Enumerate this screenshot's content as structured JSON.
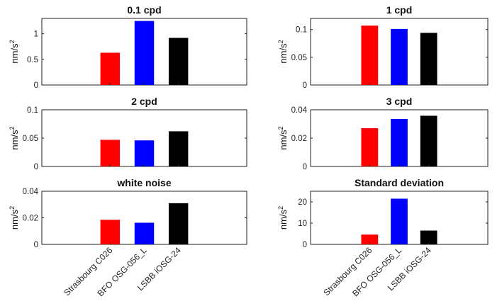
{
  "chart_data": [
    {
      "type": "bar",
      "title": "0.1 cpd",
      "ylabel": "nm/s",
      "ylabel_sup": "2",
      "categories": [
        "Strasbourg C026",
        "BFO OSG-056_L",
        "LSBB iOSG-24"
      ],
      "values": [
        0.63,
        1.25,
        0.92
      ],
      "ylim": [
        0,
        1.3
      ],
      "yticks": [
        0,
        0.5,
        1
      ],
      "ytick_labels": [
        "0",
        "0.5",
        "1"
      ],
      "colors": [
        "#ff0000",
        "#0000ff",
        "#000000"
      ]
    },
    {
      "type": "bar",
      "title": "1 cpd",
      "ylabel": "nm/s",
      "ylabel_sup": "2",
      "categories": [
        "Strasbourg C026",
        "BFO OSG-056_L",
        "LSBB iOSG-24"
      ],
      "values": [
        0.107,
        0.101,
        0.094
      ],
      "ylim": [
        0,
        0.12
      ],
      "yticks": [
        0,
        0.05,
        0.1
      ],
      "ytick_labels": [
        "0",
        "0.05",
        "0.1"
      ],
      "colors": [
        "#ff0000",
        "#0000ff",
        "#000000"
      ]
    },
    {
      "type": "bar",
      "title": "2 cpd",
      "ylabel": "nm/s",
      "ylabel_sup": "2",
      "categories": [
        "Strasbourg C026",
        "BFO OSG-056_L",
        "LSBB iOSG-24"
      ],
      "values": [
        0.047,
        0.046,
        0.062
      ],
      "ylim": [
        0,
        0.1
      ],
      "yticks": [
        0,
        0.05,
        0.1
      ],
      "ytick_labels": [
        "0",
        "0.05",
        "0.1"
      ],
      "colors": [
        "#ff0000",
        "#0000ff",
        "#000000"
      ]
    },
    {
      "type": "bar",
      "title": "3 cpd",
      "ylabel": "nm/s",
      "ylabel_sup": "2",
      "categories": [
        "Strasbourg C026",
        "BFO OSG-056_L",
        "LSBB iOSG-24"
      ],
      "values": [
        0.027,
        0.0335,
        0.0358
      ],
      "ylim": [
        0,
        0.04
      ],
      "yticks": [
        0,
        0.02,
        0.04
      ],
      "ytick_labels": [
        "0",
        "0.02",
        "0.04"
      ],
      "colors": [
        "#ff0000",
        "#0000ff",
        "#000000"
      ]
    },
    {
      "type": "bar",
      "title": "white noise",
      "ylabel": "nm/s",
      "ylabel_sup": "2",
      "categories": [
        "Strasbourg C026",
        "BFO OSG-056_L",
        "LSBB iOSG-24"
      ],
      "values": [
        0.0185,
        0.0163,
        0.031
      ],
      "ylim": [
        0,
        0.04
      ],
      "yticks": [
        0,
        0.02,
        0.04
      ],
      "ytick_labels": [
        "0",
        "0.02",
        "0.04"
      ],
      "colors": [
        "#ff0000",
        "#0000ff",
        "#000000"
      ]
    },
    {
      "type": "bar",
      "title": "Standard deviation",
      "ylabel": "nm/s",
      "ylabel_sup": "2",
      "categories": [
        "Strasbourg C026",
        "BFO OSG-056_L",
        "LSBB iOSG-24"
      ],
      "values": [
        4.6,
        21.5,
        6.5
      ],
      "ylim": [
        0,
        25
      ],
      "yticks": [
        0,
        10,
        20
      ],
      "ytick_labels": [
        "0",
        "10",
        "20"
      ],
      "colors": [
        "#ff0000",
        "#0000ff",
        "#000000"
      ]
    }
  ]
}
